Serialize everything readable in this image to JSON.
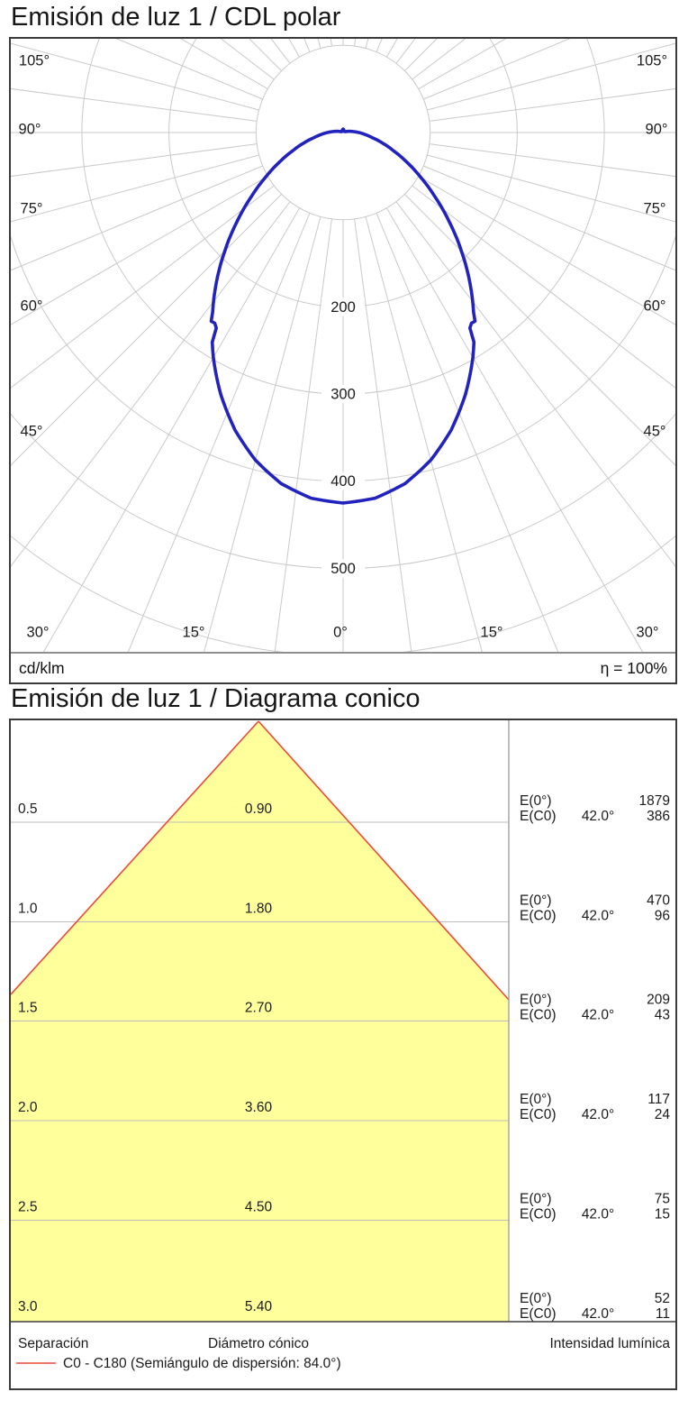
{
  "chart_data": [
    {
      "type": "line",
      "subtype": "polar-intensity-distribution",
      "title": "Emisión de luz 1 / CDL polar",
      "units": "cd/klm",
      "efficiency": "η = 100%",
      "grid": {
        "on": true,
        "ring_step": 100,
        "rings": [
          100,
          200,
          300,
          400,
          500,
          600
        ],
        "labeled_rings": [
          200,
          300,
          400,
          500
        ],
        "angle_step_deg": 7.5,
        "side_labels": [
          "105°",
          "90°",
          "75°",
          "60°",
          "45°"
        ],
        "bottom_labels": [
          "30°",
          "15°",
          "0°",
          "15°",
          "30°"
        ],
        "grid_color": "#c9c9c9"
      },
      "series": [
        {
          "name": "C0 - C180",
          "color": "#2222bf",
          "symmetric": true,
          "angles_deg": [
            0,
            5,
            10,
            15,
            20,
            25,
            30,
            32.2,
            32.8,
            34.2,
            34.8,
            36,
            40,
            42,
            45,
            50,
            55,
            60,
            65,
            70,
            75,
            80,
            85,
            90,
            95,
            100,
            105,
            110,
            120,
            135,
            150,
            165,
            180
          ],
          "values_cd_klm": [
            425,
            421,
            409,
            389,
            363,
            332,
            298,
            282,
            268,
            263,
            266,
            255,
            227,
            213,
            192,
            159,
            129,
            103,
            81,
            62,
            47,
            34,
            25,
            18,
            12,
            8,
            5,
            3,
            2,
            2,
            2,
            3,
            4
          ]
        }
      ]
    },
    {
      "type": "table",
      "subtype": "cone-diagram",
      "title": "Emisión de luz 1 / Diagrama conico",
      "beam_half_angle_deg": 42.0,
      "labels": {
        "e0": "E(0°)",
        "ec0": "E(C0)",
        "angle": "42.0°"
      },
      "rows": [
        {
          "separation": "0.5",
          "diameter": "0.90",
          "e0": "1879",
          "ec0": "386"
        },
        {
          "separation": "1.0",
          "diameter": "1.80",
          "e0": "470",
          "ec0": "96"
        },
        {
          "separation": "1.5",
          "diameter": "2.70",
          "e0": "209",
          "ec0": "43"
        },
        {
          "separation": "2.0",
          "diameter": "3.60",
          "e0": "117",
          "ec0": "24"
        },
        {
          "separation": "2.5",
          "diameter": "4.50",
          "e0": "75",
          "ec0": "15"
        },
        {
          "separation": "3.0",
          "diameter": "5.40",
          "e0": "52",
          "ec0": "11"
        }
      ],
      "columns": {
        "separation": "Separación",
        "diameter": "Diámetro cónico",
        "intensity": "Intensidad lumínica"
      },
      "legend": "C0 - C180 (Semiángulo de dispersión: 84.0°)",
      "colors": {
        "fill": "#ffff9c",
        "line": "#f04838"
      }
    }
  ]
}
